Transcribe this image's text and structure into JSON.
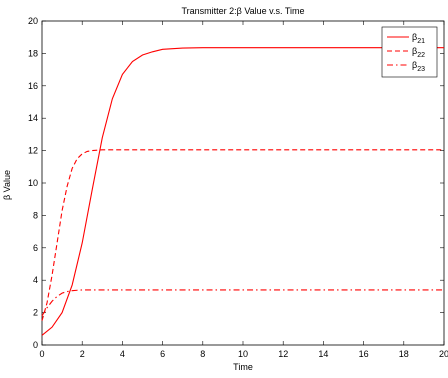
{
  "chart_data": {
    "type": "line",
    "title": "Transmitter 2:β Value v.s. Time",
    "xlabel": "Time",
    "ylabel": "β Value",
    "xlim": [
      0,
      20
    ],
    "ylim": [
      0,
      20
    ],
    "xticks": [
      0,
      2,
      4,
      6,
      8,
      10,
      12,
      14,
      16,
      18,
      20
    ],
    "yticks": [
      0,
      2,
      4,
      6,
      8,
      10,
      12,
      14,
      16,
      18,
      20
    ],
    "grid": false,
    "legend_position": "top-right",
    "series": [
      {
        "name": "β21",
        "legend_base": "β",
        "legend_sub": "21",
        "style": "solid",
        "color": "#ff0000",
        "x": [
          0,
          0.5,
          1,
          1.5,
          2,
          2.5,
          3,
          3.5,
          4,
          4.5,
          5,
          5.5,
          6,
          7,
          8,
          10,
          12,
          14,
          16,
          18,
          20
        ],
        "y": [
          0.6,
          1.1,
          2.0,
          3.7,
          6.3,
          9.6,
          12.8,
          15.2,
          16.7,
          17.5,
          17.9,
          18.1,
          18.25,
          18.33,
          18.35,
          18.35,
          18.35,
          18.35,
          18.35,
          18.35,
          18.35
        ]
      },
      {
        "name": "β22",
        "legend_base": "β",
        "legend_sub": "22",
        "style": "dashed",
        "color": "#ff0000",
        "x": [
          0,
          0.25,
          0.5,
          0.75,
          1,
          1.25,
          1.5,
          1.75,
          2,
          2.25,
          2.5,
          3,
          4,
          6,
          8,
          10,
          12,
          14,
          16,
          18,
          20
        ],
        "y": [
          1.5,
          2.6,
          4.3,
          6.3,
          8.3,
          9.8,
          10.9,
          11.5,
          11.8,
          11.95,
          12.0,
          12.05,
          12.05,
          12.05,
          12.05,
          12.05,
          12.05,
          12.05,
          12.05,
          12.05,
          12.05
        ]
      },
      {
        "name": "β23",
        "legend_base": "β",
        "legend_sub": "23",
        "style": "dashdot",
        "color": "#ff0000",
        "x": [
          0,
          0.25,
          0.5,
          0.75,
          1,
          1.25,
          1.5,
          1.75,
          2,
          3,
          4,
          6,
          8,
          10,
          12,
          14,
          16,
          18,
          20
        ],
        "y": [
          1.8,
          2.3,
          2.7,
          3.0,
          3.2,
          3.3,
          3.35,
          3.38,
          3.4,
          3.4,
          3.4,
          3.4,
          3.4,
          3.4,
          3.4,
          3.4,
          3.4,
          3.4,
          3.4
        ]
      }
    ]
  }
}
